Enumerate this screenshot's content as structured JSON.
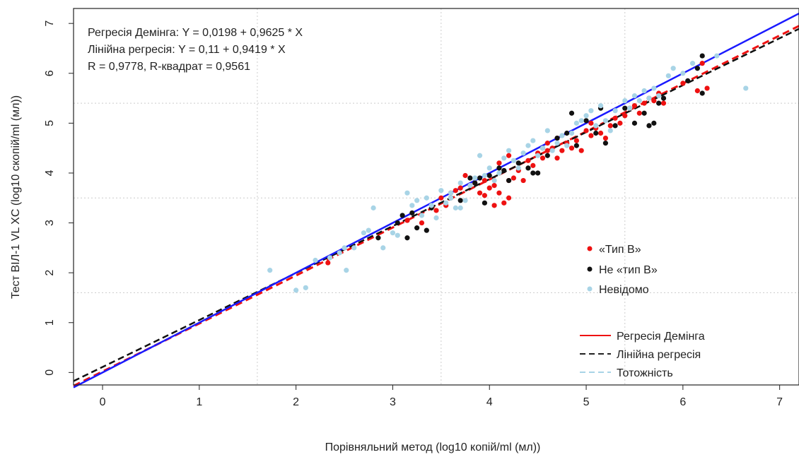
{
  "chart_data": {
    "type": "scatter",
    "xlabel": "Порівняльний метод (log10 копій/ml (мл))",
    "ylabel": "Тест ВІЛ-1 VL XC (log10 скопій/ml (мл))",
    "xlim": [
      -0.3,
      7.2
    ],
    "ylim": [
      -0.25,
      7.3
    ],
    "x_ticks": [
      "0",
      "1",
      "2",
      "3",
      "4",
      "5",
      "6",
      "7"
    ],
    "y_ticks": [
      "0",
      "1",
      "2",
      "3",
      "4",
      "5",
      "6",
      "7"
    ],
    "grid": true,
    "annotations": [
      "Регресія Демінга: Y = 0,0198 + 0,9625 * X",
      "Лінійна регресія: Y = 0,11 + 0,9419 * X",
      "R = 0,9778, R-квадрат = 0,9561"
    ],
    "point_legend": {
      "placement": "right",
      "items": [
        {
          "label": "«Тип В»",
          "color": "#ee1111"
        },
        {
          "label": "Не «тип В»",
          "color": "#111111"
        },
        {
          "label": "Невідомо",
          "color": "#a8d4e6"
        }
      ]
    },
    "line_legend": {
      "placement": "bottom-right",
      "items": [
        {
          "label": "Регресія Демінга",
          "color": "#ee1111",
          "style": "solid"
        },
        {
          "label": "Лінійна регресія",
          "color": "#222222",
          "style": "dashed"
        },
        {
          "label": "Тотожність",
          "color": "#a8d4e6",
          "style": "dashed"
        }
      ]
    },
    "lines": [
      {
        "name": "Регресія Демінга",
        "intercept": 0.0198,
        "slope": 0.9625,
        "color": "#ee1111",
        "dash": "10,6",
        "width": 3
      },
      {
        "name": "Лінійна регресія",
        "intercept": 0.11,
        "slope": 0.9419,
        "color": "#111111",
        "dash": "9,5",
        "width": 2.5
      },
      {
        "name": "Тотожність",
        "intercept": 0,
        "slope": 1,
        "color": "#1a1aff",
        "dash": "",
        "width": 2.5
      }
    ],
    "series": [
      {
        "name": "«Тип В»",
        "color": "#ee1111",
        "points": [
          [
            2.33,
            2.2
          ],
          [
            3.15,
            3.05
          ],
          [
            3.45,
            3.25
          ],
          [
            3.55,
            3.35
          ],
          [
            3.6,
            3.6
          ],
          [
            3.65,
            3.65
          ],
          [
            3.7,
            3.7
          ],
          [
            3.75,
            3.95
          ],
          [
            3.8,
            3.75
          ],
          [
            3.85,
            3.8
          ],
          [
            3.9,
            3.6
          ],
          [
            3.95,
            3.55
          ],
          [
            4.0,
            3.7
          ],
          [
            4.05,
            3.75
          ],
          [
            4.1,
            3.6
          ],
          [
            4.15,
            3.4
          ],
          [
            4.2,
            3.5
          ],
          [
            4.25,
            3.9
          ],
          [
            4.3,
            4.05
          ],
          [
            4.35,
            3.85
          ],
          [
            4.4,
            4.25
          ],
          [
            4.45,
            4.15
          ],
          [
            4.5,
            4.4
          ],
          [
            4.55,
            4.3
          ],
          [
            4.6,
            4.45
          ],
          [
            4.65,
            4.5
          ],
          [
            4.7,
            4.3
          ],
          [
            4.75,
            4.45
          ],
          [
            4.8,
            4.6
          ],
          [
            4.85,
            4.5
          ],
          [
            4.9,
            4.65
          ],
          [
            4.95,
            4.45
          ],
          [
            5.0,
            4.85
          ],
          [
            5.05,
            4.75
          ],
          [
            5.1,
            4.9
          ],
          [
            5.15,
            4.8
          ],
          [
            5.2,
            4.7
          ],
          [
            5.25,
            4.95
          ],
          [
            5.3,
            5.1
          ],
          [
            5.35,
            5.0
          ],
          [
            5.4,
            5.15
          ],
          [
            5.45,
            5.3
          ],
          [
            5.5,
            5.35
          ],
          [
            5.55,
            5.2
          ],
          [
            5.6,
            5.4
          ],
          [
            5.65,
            5.5
          ],
          [
            5.7,
            5.45
          ],
          [
            5.75,
            5.6
          ],
          [
            5.8,
            5.4
          ],
          [
            6.0,
            5.8
          ],
          [
            6.15,
            5.65
          ],
          [
            6.2,
            6.2
          ],
          [
            6.25,
            5.7
          ],
          [
            4.1,
            4.2
          ],
          [
            4.2,
            4.35
          ],
          [
            3.95,
            3.85
          ],
          [
            4.05,
            3.35
          ],
          [
            3.5,
            3.5
          ],
          [
            3.3,
            3.0
          ],
          [
            4.6,
            4.6
          ],
          [
            4.7,
            4.7
          ],
          [
            5.05,
            5.0
          ],
          [
            4.2,
            3.85
          ]
        ]
      },
      {
        "name": "Не «тип В»",
        "color": "#111111",
        "points": [
          [
            3.1,
            3.15
          ],
          [
            3.15,
            2.7
          ],
          [
            3.2,
            3.2
          ],
          [
            3.25,
            2.9
          ],
          [
            3.35,
            2.85
          ],
          [
            3.4,
            3.3
          ],
          [
            3.6,
            3.5
          ],
          [
            3.7,
            3.45
          ],
          [
            3.8,
            3.9
          ],
          [
            3.85,
            3.8
          ],
          [
            3.9,
            3.9
          ],
          [
            3.95,
            3.4
          ],
          [
            4.0,
            3.95
          ],
          [
            4.1,
            4.1
          ],
          [
            4.15,
            4.05
          ],
          [
            4.2,
            3.85
          ],
          [
            4.3,
            4.2
          ],
          [
            4.4,
            4.1
          ],
          [
            4.5,
            4.0
          ],
          [
            4.55,
            4.5
          ],
          [
            4.6,
            4.35
          ],
          [
            4.7,
            4.7
          ],
          [
            4.8,
            4.8
          ],
          [
            4.85,
            5.2
          ],
          [
            4.9,
            4.55
          ],
          [
            5.0,
            5.05
          ],
          [
            5.1,
            4.8
          ],
          [
            5.15,
            5.3
          ],
          [
            5.2,
            4.6
          ],
          [
            5.3,
            4.95
          ],
          [
            5.4,
            5.3
          ],
          [
            5.5,
            5.0
          ],
          [
            5.6,
            5.2
          ],
          [
            5.65,
            4.95
          ],
          [
            5.7,
            5.0
          ],
          [
            5.8,
            5.5
          ],
          [
            6.05,
            5.85
          ],
          [
            6.15,
            6.1
          ],
          [
            6.2,
            6.35
          ],
          [
            6.2,
            5.6
          ],
          [
            2.85,
            2.7
          ],
          [
            3.05,
            3.0
          ],
          [
            4.45,
            4.0
          ],
          [
            5.75,
            5.4
          ]
        ]
      },
      {
        "name": "Невідомо",
        "color": "#a8d4e6",
        "points": [
          [
            1.73,
            2.05
          ],
          [
            2.0,
            1.65
          ],
          [
            2.1,
            1.7
          ],
          [
            2.2,
            2.25
          ],
          [
            2.35,
            2.3
          ],
          [
            2.5,
            2.5
          ],
          [
            2.52,
            2.05
          ],
          [
            2.6,
            2.5
          ],
          [
            2.7,
            2.8
          ],
          [
            2.75,
            2.85
          ],
          [
            2.8,
            3.3
          ],
          [
            2.9,
            2.5
          ],
          [
            3.0,
            2.8
          ],
          [
            3.05,
            2.75
          ],
          [
            3.15,
            3.6
          ],
          [
            3.2,
            3.35
          ],
          [
            3.25,
            3.45
          ],
          [
            3.3,
            3.15
          ],
          [
            3.35,
            3.5
          ],
          [
            3.4,
            3.35
          ],
          [
            3.45,
            3.1
          ],
          [
            3.5,
            3.65
          ],
          [
            3.55,
            3.4
          ],
          [
            3.6,
            3.5
          ],
          [
            3.65,
            3.3
          ],
          [
            3.7,
            3.8
          ],
          [
            3.75,
            3.45
          ],
          [
            3.8,
            3.75
          ],
          [
            3.85,
            3.9
          ],
          [
            3.9,
            4.35
          ],
          [
            3.95,
            3.95
          ],
          [
            4.0,
            4.1
          ],
          [
            4.05,
            3.85
          ],
          [
            4.1,
            4.0
          ],
          [
            4.15,
            4.3
          ],
          [
            4.2,
            4.45
          ],
          [
            4.25,
            4.25
          ],
          [
            4.3,
            4.1
          ],
          [
            4.35,
            4.4
          ],
          [
            4.4,
            4.55
          ],
          [
            4.5,
            4.35
          ],
          [
            4.6,
            4.85
          ],
          [
            4.65,
            4.45
          ],
          [
            4.7,
            4.6
          ],
          [
            4.75,
            4.75
          ],
          [
            4.8,
            4.55
          ],
          [
            4.85,
            4.8
          ],
          [
            4.9,
            5.0
          ],
          [
            4.95,
            5.05
          ],
          [
            5.0,
            5.15
          ],
          [
            5.05,
            5.25
          ],
          [
            5.1,
            4.95
          ],
          [
            5.15,
            5.35
          ],
          [
            5.2,
            5.05
          ],
          [
            5.3,
            5.25
          ],
          [
            5.4,
            5.45
          ],
          [
            5.45,
            5.3
          ],
          [
            5.5,
            5.55
          ],
          [
            5.55,
            5.45
          ],
          [
            5.6,
            5.65
          ],
          [
            5.65,
            5.5
          ],
          [
            5.7,
            5.7
          ],
          [
            5.75,
            5.55
          ],
          [
            5.85,
            5.95
          ],
          [
            5.9,
            6.1
          ],
          [
            6.0,
            6.0
          ],
          [
            6.1,
            6.2
          ],
          [
            6.35,
            6.35
          ],
          [
            6.65,
            5.7
          ],
          [
            4.45,
            4.65
          ],
          [
            4.55,
            4.5
          ],
          [
            3.6,
            3.6
          ],
          [
            5.25,
            4.85
          ],
          [
            3.7,
            3.3
          ],
          [
            2.45,
            2.4
          ]
        ]
      }
    ]
  }
}
